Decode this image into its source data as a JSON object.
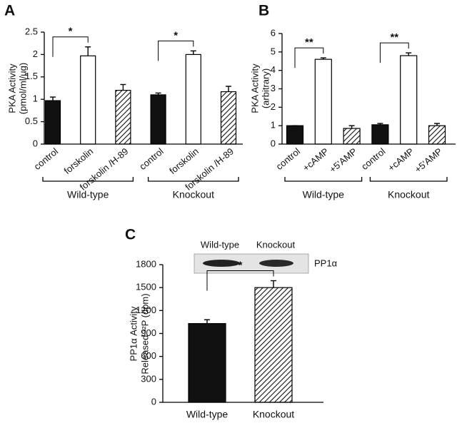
{
  "chart_data": [
    {
      "type": "bar",
      "panel": "A",
      "y_label": "PKA Activity",
      "y_label_unit": "(pmol/ml/µg)",
      "categories": [
        "control",
        "forskolin",
        "forskolin /H-89",
        "control",
        "forskolin",
        "forskolin /H-89"
      ],
      "values": [
        0.97,
        1.97,
        1.2,
        1.1,
        2.0,
        1.17
      ],
      "errors": [
        0.08,
        0.2,
        0.13,
        0.04,
        0.08,
        0.12
      ],
      "styles": [
        "solid",
        "open",
        "hatched",
        "solid",
        "open",
        "hatched"
      ],
      "groups": [
        "Wild-type",
        "Knockout"
      ],
      "rotate_labels": true,
      "ylim": [
        0,
        2.5
      ],
      "yticks": [
        0,
        0.5,
        1,
        1.5,
        2,
        2.5
      ],
      "significance": [
        {
          "pair": [
            0,
            1
          ],
          "label": "*"
        },
        {
          "pair": [
            3,
            4
          ],
          "label": "*"
        }
      ]
    },
    {
      "type": "bar",
      "panel": "B",
      "y_label": "PKA Activity",
      "y_label_unit": "(arbitrary)",
      "categories": [
        "control",
        "+cAMP",
        "+5'AMP",
        "control",
        "+cAMP",
        "+5'AMP"
      ],
      "values": [
        1.0,
        4.6,
        0.85,
        1.05,
        4.8,
        1.0
      ],
      "errors": [
        0,
        0.08,
        0.15,
        0.07,
        0.15,
        0.12
      ],
      "styles": [
        "solid",
        "open",
        "hatched",
        "solid",
        "open",
        "hatched"
      ],
      "groups": [
        "Wild-type",
        "Knockout"
      ],
      "rotate_labels": true,
      "ylim": [
        0,
        6
      ],
      "yticks": [
        0,
        1,
        2,
        3,
        4,
        5,
        6
      ],
      "significance": [
        {
          "pair": [
            0,
            1
          ],
          "label": "**"
        },
        {
          "pair": [
            3,
            4
          ],
          "label": "**"
        }
      ]
    },
    {
      "type": "bar",
      "panel": "C",
      "y_label": "PP1α Activity",
      "y_label_unit": "Released ³²P (dpm)",
      "categories": [
        "Wild-type",
        "Knockout"
      ],
      "values": [
        1030,
        1500
      ],
      "errors": [
        50,
        90
      ],
      "styles": [
        "solid",
        "hatched"
      ],
      "rotate_labels": false,
      "ylim": [
        0,
        1800
      ],
      "yticks": [
        0,
        300,
        600,
        900,
        1200,
        1500,
        1800
      ],
      "significance": [
        {
          "pair": [
            0,
            1
          ],
          "label": "*"
        }
      ],
      "blot": {
        "lanes": [
          "Wild-type",
          "Knockout"
        ],
        "label": "PP1α"
      }
    }
  ]
}
